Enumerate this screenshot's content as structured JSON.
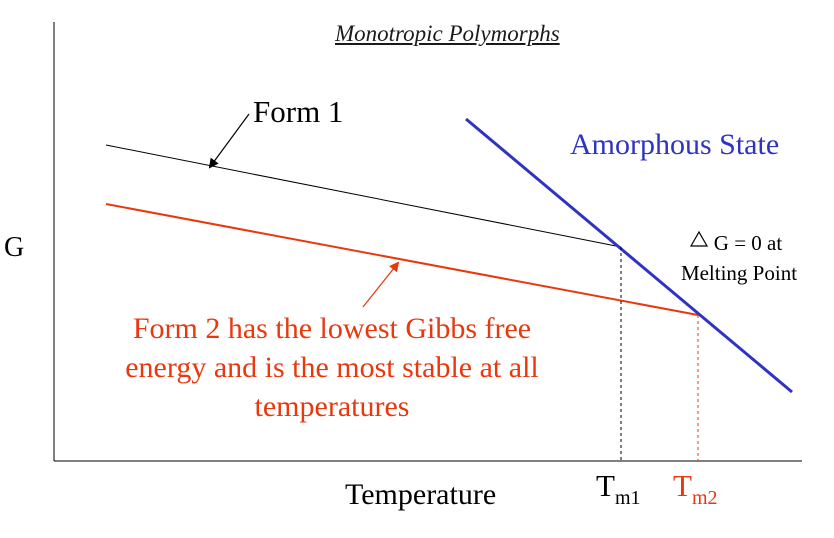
{
  "title": "Monotropic Polymorphs",
  "axes": {
    "y_label": "G",
    "x_label": "Temperature"
  },
  "curves": [
    {
      "label": "Form 1",
      "color": "#000000"
    },
    {
      "label": "Amorphous State",
      "color": "#2f33c2"
    },
    {
      "label": "Form 2",
      "color": "#e8380d"
    }
  ],
  "annotations": {
    "form1": "Form 1",
    "amorphous": "Amorphous State",
    "melting_line1": "G = 0 at",
    "melting_line2": "Melting Point",
    "delta_symbol": "triangle",
    "form2_note": "Form 2 has the lowest Gibbs free energy and is the most stable at all temperatures"
  },
  "ticks": {
    "tm1": {
      "base": "T",
      "sub": "m1",
      "color": "#000000"
    },
    "tm2": {
      "base": "T",
      "sub": "m2",
      "color": "#e8380d"
    }
  }
}
